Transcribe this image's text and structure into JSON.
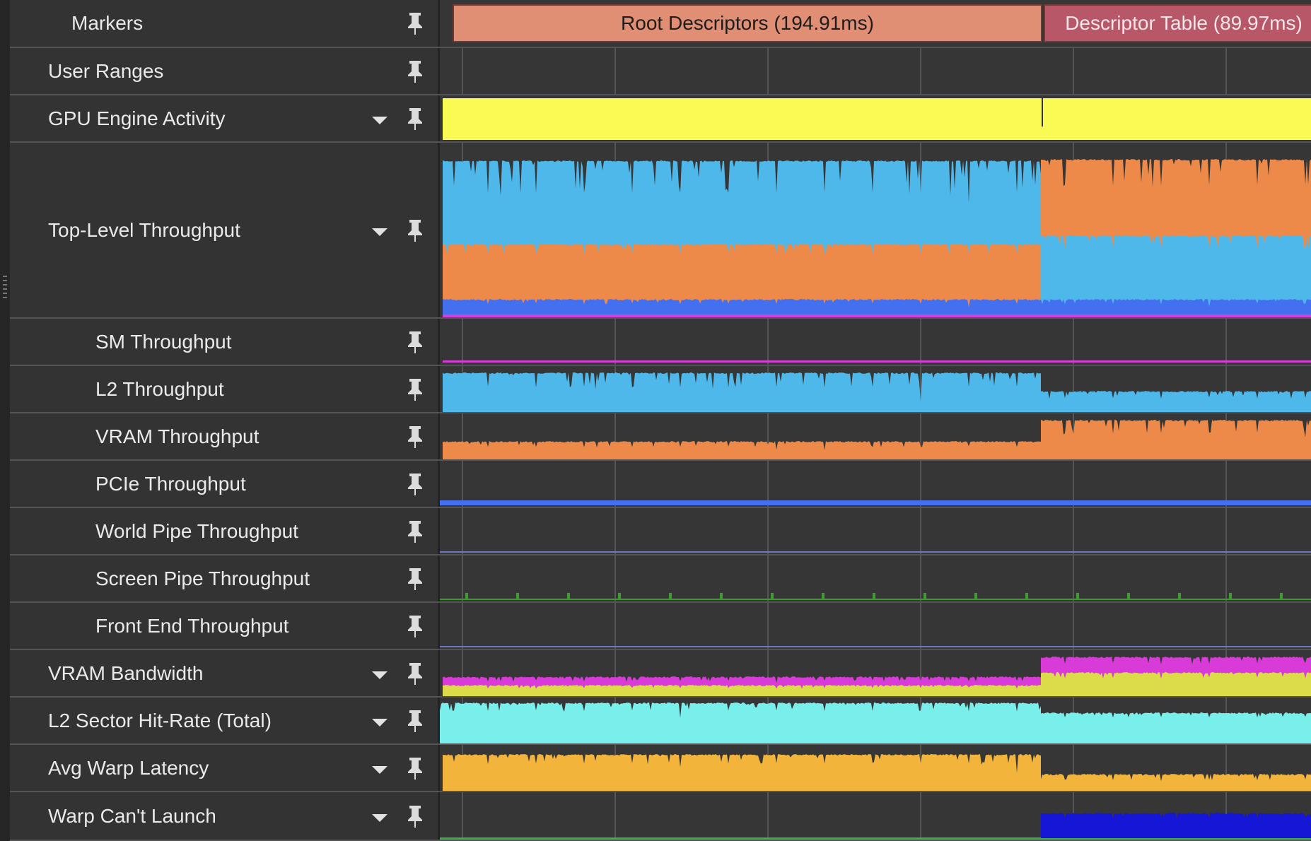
{
  "colors": {
    "engine": "#fafa55",
    "l2": "#4fb8ea",
    "vram": "#ee8a49",
    "pcie": "#4470f0",
    "sm": "#d63ed6",
    "screen_pipe": "#3a9b2f",
    "world_pipe": "#6a78c6",
    "bw_read": "#d83bd8",
    "bw_write": "#dcdc4a",
    "hit_rate": "#78efeb",
    "warp_latency": "#f3b43b",
    "warp_cant_launch": "#1616d6",
    "green_line": "#39b24a"
  },
  "markers": [
    {
      "label": "Root Descriptors (194.91ms)"
    },
    {
      "label": "Descriptor Table (89.97ms)"
    }
  ],
  "rows": [
    {
      "id": "markers",
      "label": "Markers",
      "level": 0,
      "expandable": false,
      "icons": [
        "pin-icon"
      ]
    },
    {
      "id": "user_ranges",
      "label": "User Ranges",
      "level": 1,
      "expandable": false,
      "icons": [
        "pin-icon"
      ]
    },
    {
      "id": "gpu_engine",
      "label": "GPU Engine Activity",
      "level": 1,
      "expandable": true,
      "icons": [
        "chevron-down-icon",
        "pin-icon"
      ]
    },
    {
      "id": "top_level",
      "label": "Top-Level Throughput",
      "level": 1,
      "expandable": true,
      "icons": [
        "chevron-down-icon",
        "pin-icon"
      ]
    },
    {
      "id": "sm",
      "label": "SM Throughput",
      "level": 2,
      "expandable": false,
      "icons": [
        "pin-icon"
      ]
    },
    {
      "id": "l2",
      "label": "L2 Throughput",
      "level": 2,
      "expandable": false,
      "icons": [
        "pin-icon"
      ]
    },
    {
      "id": "vram",
      "label": "VRAM Throughput",
      "level": 2,
      "expandable": false,
      "icons": [
        "pin-icon"
      ]
    },
    {
      "id": "pcie",
      "label": "PCIe Throughput",
      "level": 2,
      "expandable": false,
      "icons": [
        "pin-icon"
      ]
    },
    {
      "id": "world_pipe",
      "label": "World Pipe Throughput",
      "level": 2,
      "expandable": false,
      "icons": [
        "pin-icon"
      ]
    },
    {
      "id": "screen_pipe",
      "label": "Screen Pipe Throughput",
      "level": 2,
      "expandable": false,
      "icons": [
        "pin-icon"
      ]
    },
    {
      "id": "front_end",
      "label": "Front End Throughput",
      "level": 2,
      "expandable": false,
      "icons": [
        "pin-icon"
      ]
    },
    {
      "id": "vram_bw",
      "label": "VRAM Bandwidth",
      "level": 1,
      "expandable": true,
      "icons": [
        "chevron-down-icon",
        "pin-icon"
      ]
    },
    {
      "id": "l2_hit",
      "label": "L2 Sector Hit-Rate (Total)",
      "level": 1,
      "expandable": true,
      "icons": [
        "chevron-down-icon",
        "pin-icon"
      ]
    },
    {
      "id": "warp_lat",
      "label": "Avg Warp Latency",
      "level": 1,
      "expandable": true,
      "icons": [
        "chevron-down-icon",
        "pin-icon"
      ]
    },
    {
      "id": "warp_cant",
      "label": "Warp Can't Launch",
      "level": 1,
      "expandable": true,
      "icons": [
        "chevron-down-icon",
        "pin-icon"
      ]
    }
  ]
}
